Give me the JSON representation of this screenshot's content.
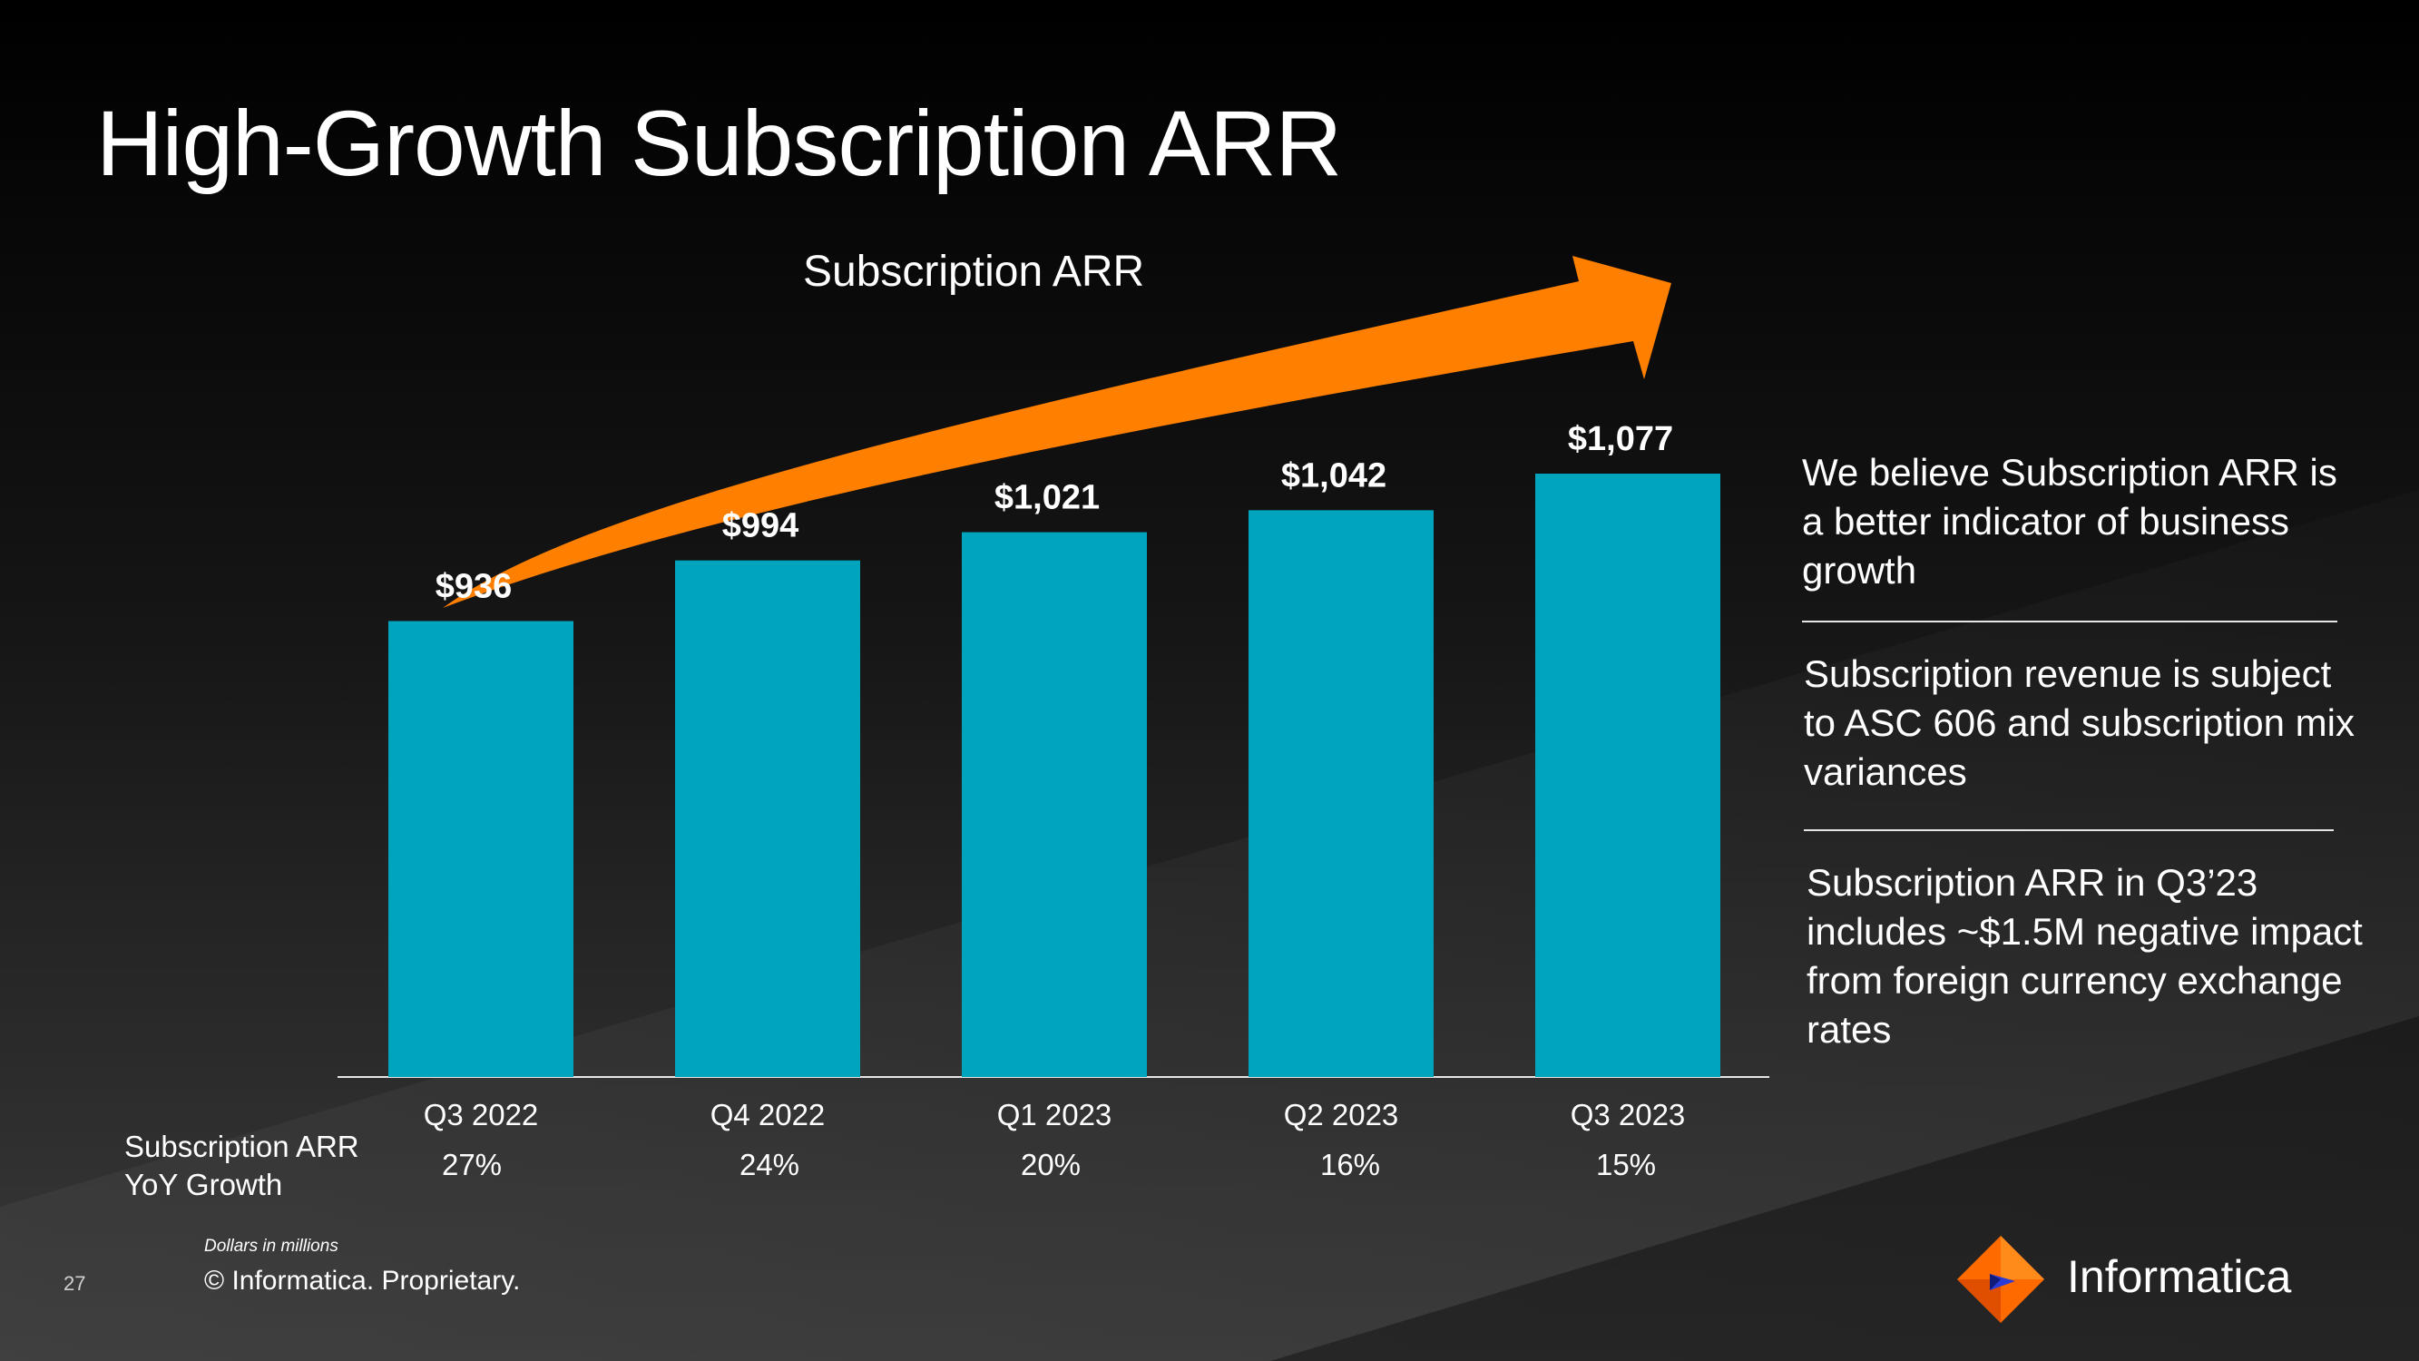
{
  "slide": {
    "title": "High-Growth Subscription ARR",
    "page_number": "27",
    "footnote": "Dollars in millions",
    "copyright": "© Informatica. Proprietary.",
    "logo_text": "Informatica",
    "colors": {
      "bar": "#00a5bd",
      "arrow": "#ff7f00",
      "text": "#ffffff",
      "background": "#0f0f0f"
    }
  },
  "notes": [
    {
      "text": "We believe Subscription ARR is a better indicator of business growth"
    },
    {
      "text": "Subscription revenue is subject to ASC 606 and subscription mix variances"
    },
    {
      "text": "Subscription ARR in Q3’23 includes ~$1.5M negative impact from foreign currency exchange rates"
    }
  ],
  "growth_row": {
    "label_line1": "Subscription ARR",
    "label_line2": "YoY Growth",
    "values": [
      "27%",
      "24%",
      "20%",
      "16%",
      "15%"
    ]
  },
  "chart_data": {
    "type": "bar",
    "title": "Subscription ARR",
    "categories": [
      "Q3 2022",
      "Q4 2022",
      "Q1 2023",
      "Q2 2023",
      "Q3 2023"
    ],
    "values": [
      936,
      994,
      1021,
      1042,
      1077
    ],
    "value_labels": [
      "$936",
      "$994",
      "$1,021",
      "$1,042",
      "$1,077"
    ],
    "xlabel": "",
    "ylabel": "",
    "ylim": [
      0,
      1200
    ],
    "grid": false,
    "legend": "none"
  }
}
